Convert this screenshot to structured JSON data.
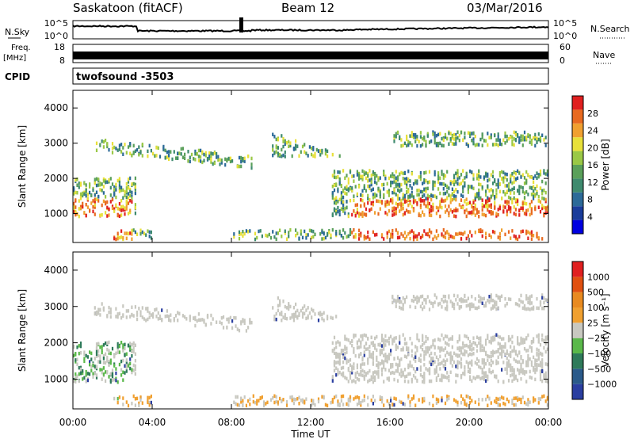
{
  "header": {
    "station": "Saskatoon (fitACF)",
    "beam": "Beam 12",
    "date": "03/Mar/2016"
  },
  "noise_panel": {
    "left_label": "N.Sky",
    "right_label": "N.Search",
    "y_ticks": [
      "10^5",
      "10^0"
    ]
  },
  "freq_panel": {
    "left_label_1": "Freq.",
    "left_label_2": "[MHz]",
    "left_ticks": [
      "18",
      "8"
    ],
    "right_ticks": [
      "60",
      "0"
    ],
    "right_label": "Nave"
  },
  "cpid_panel": {
    "label": "CPID",
    "program": "twofsound",
    "id": "-3503"
  },
  "chart_data": [
    {
      "type": "heatmap",
      "quantity": "Power",
      "ylabel": "Slant Range [km]",
      "ylim": [
        180,
        4500
      ],
      "y_ticks": [
        1000,
        2000,
        3000,
        4000
      ],
      "colorbar_label": "Power [dB]",
      "colorbar_ticks": [
        "28",
        "24",
        "20",
        "16",
        "12",
        "8",
        "4"
      ],
      "colorbar_colors": [
        "#0000e0",
        "#1a3c9a",
        "#2c6a98",
        "#3e8a6e",
        "#5aa05a",
        "#9ac846",
        "#e8e03a",
        "#f0a030",
        "#e86a20",
        "#e02020"
      ],
      "colorbar_range": [
        0,
        30
      ]
    },
    {
      "type": "heatmap",
      "quantity": "Velocity",
      "ylabel": "Slant Range [km]",
      "ylim": [
        180,
        4500
      ],
      "y_ticks": [
        1000,
        2000,
        3000,
        4000
      ],
      "colorbar_label": "Velocity [m s⁻¹]",
      "colorbar_ticks": [
        "1000",
        "500",
        "100",
        "25",
        "−25",
        "−100",
        "−500",
        "−1000"
      ],
      "colorbar_colors": [
        "#2a3ea0",
        "#2a5a8a",
        "#2e7a5a",
        "#5ab84a",
        "#c8c8c0",
        "#f0a030",
        "#e88a20",
        "#e05010",
        "#e02020"
      ]
    }
  ],
  "x_axis": {
    "ticks": [
      "00:00",
      "04:00",
      "08:00",
      "12:00",
      "16:00",
      "20:00",
      "00:00"
    ],
    "label": "Time UT"
  }
}
